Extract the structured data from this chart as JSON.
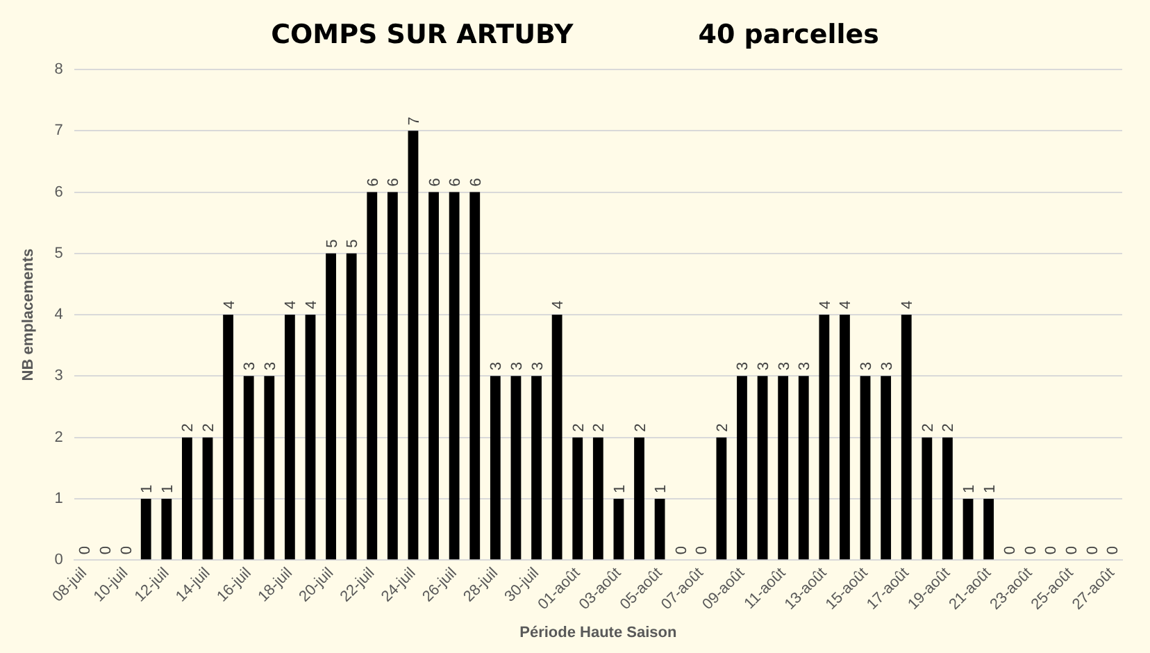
{
  "chart_data": {
    "type": "bar",
    "title": "COMPS SUR ARTUBY",
    "subtitle": "40 parcelles",
    "xlabel": "Période Haute Saison",
    "ylabel": "NB emplacements",
    "categories": [
      "08-juil",
      null,
      "10-juil",
      null,
      "12-juil",
      null,
      "14-juil",
      null,
      "16-juil",
      null,
      "18-juil",
      null,
      "20-juil",
      null,
      "22-juil",
      null,
      "24-juil",
      null,
      "26-juil",
      null,
      "28-juil",
      null,
      "30-juil",
      null,
      "01-août",
      null,
      "03-août",
      null,
      "05-août",
      null,
      "07-août",
      null,
      "09-août",
      null,
      "11-août",
      null,
      "13-août",
      null,
      "15-août",
      null,
      "17-août",
      null,
      "19-août",
      null,
      "21-août",
      null,
      "23-août",
      null,
      "25-août",
      null,
      "27-août"
    ],
    "values": [
      0,
      0,
      0,
      1,
      1,
      2,
      2,
      4,
      3,
      3,
      4,
      4,
      5,
      5,
      6,
      6,
      7,
      6,
      6,
      6,
      3,
      3,
      3,
      4,
      2,
      2,
      1,
      2,
      1,
      0,
      0,
      2,
      3,
      3,
      3,
      3,
      4,
      4,
      3,
      3,
      4,
      2,
      2,
      1,
      1,
      0,
      0,
      0,
      0,
      0,
      0
    ],
    "color": "#000000",
    "ylim": [
      0,
      8
    ],
    "yticks": [
      0,
      1,
      2,
      3,
      4,
      5,
      6,
      7,
      8
    ],
    "grid": "y",
    "legend": false,
    "data_labels": true
  }
}
